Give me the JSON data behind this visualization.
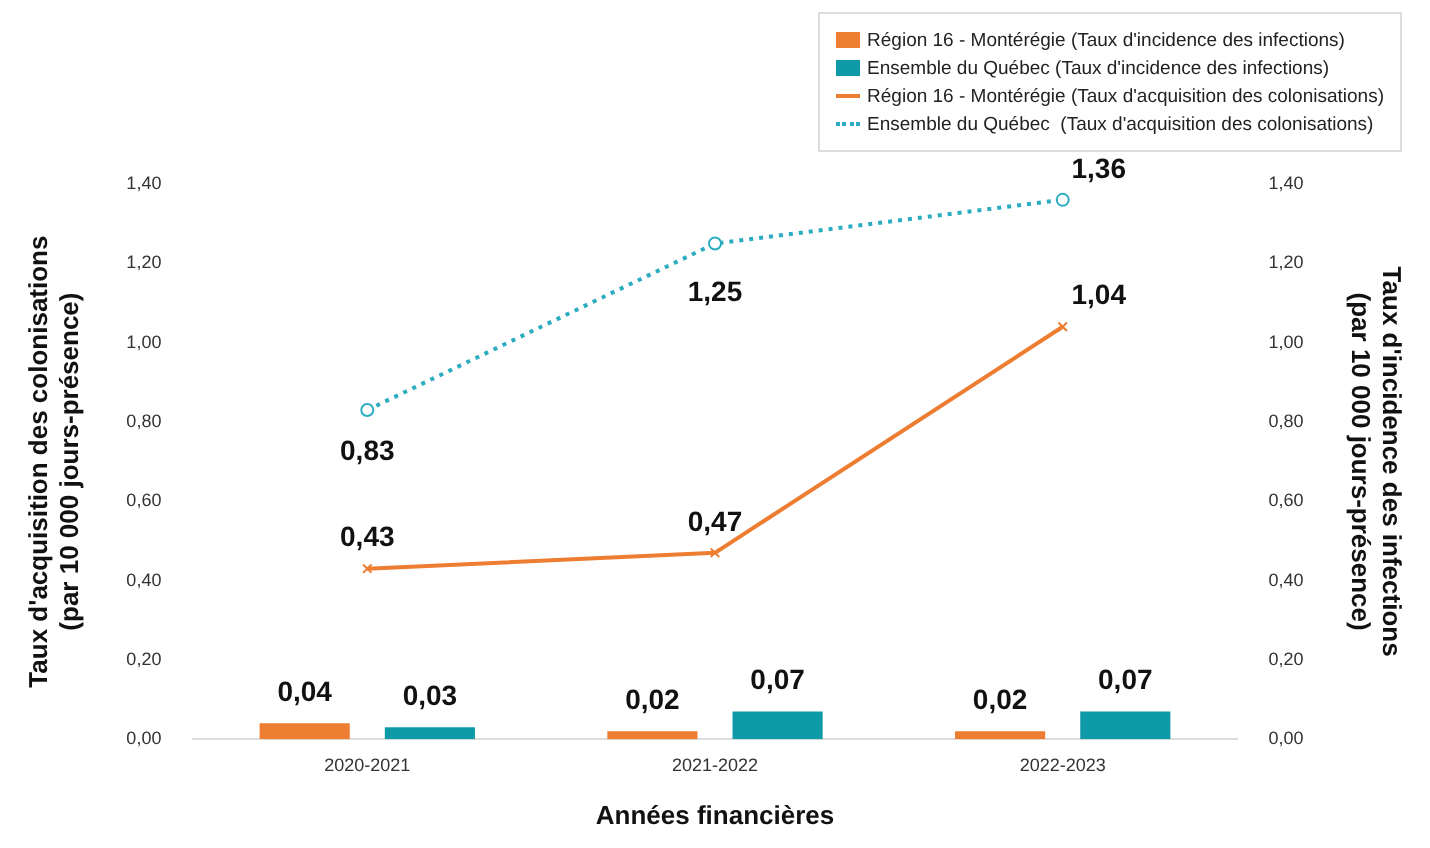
{
  "chart_data": {
    "type": "bar",
    "categories": [
      "2020-2021",
      "2021-2022",
      "2022-2023"
    ],
    "xlabel": "Années financières",
    "ylabel": "Taux d'acquisition des colonisations (par 10 000 jours-présence)",
    "y2label": "Taux d'incidence des infections (par 10 000 jours-présence)",
    "series": [
      {
        "name": "Région 16 - Montérégie (Taux d'incidence des infections)",
        "axis": "y2",
        "color": "#ed7d31",
        "values": [
          0.04,
          0.02,
          0.02
        ],
        "value_labels": [
          "0,04",
          "0,02",
          "0,02"
        ]
      },
      {
        "name": "Ensemble du Québec (Taux d'incidence des infections)",
        "axis": "y2",
        "color": "#0e9aa7",
        "values": [
          0.03,
          0.07,
          0.07
        ],
        "value_labels": [
          "0,03",
          "0,07",
          "0,07"
        ]
      },
      {
        "name": "Région 16 - Montérégie (Taux d'acquisition des colonisations)",
        "type": "line",
        "color": "#ed7d31",
        "marker": "cross",
        "line_style": "solid",
        "values": [
          0.43,
          0.47,
          1.04
        ],
        "value_labels": [
          "0,43",
          "0,47",
          "1,04"
        ]
      },
      {
        "name": "Ensemble du Québec  (Taux d'acquisition des colonisations)",
        "type": "line",
        "color": "#2bacc0",
        "marker": "circle",
        "line_style": "dotted",
        "values": [
          0.83,
          1.25,
          1.36
        ],
        "value_labels": [
          "0,83",
          "1,25",
          "1,36"
        ]
      }
    ],
    "ylim": [
      0,
      1.4
    ],
    "yticks": [
      {
        "value": 0,
        "label": "0,00"
      },
      {
        "value": 0.2,
        "label": "0,20"
      },
      {
        "value": 0.4,
        "label": "0,40"
      },
      {
        "value": 0.6,
        "label": "0,60"
      },
      {
        "value": 0.8,
        "label": "0,80"
      },
      {
        "value": 1,
        "label": "1,00"
      },
      {
        "value": 1.2,
        "label": "1,20"
      },
      {
        "value": 1.4,
        "label": "1,40"
      }
    ],
    "y2lim": [
      0,
      1.4
    ],
    "y2ticks": [
      {
        "value": 0,
        "label": "0,00"
      },
      {
        "value": 0.2,
        "label": "0,20"
      },
      {
        "value": 0.4,
        "label": "0,40"
      },
      {
        "value": 0.6,
        "label": "0,60"
      },
      {
        "value": 0.8,
        "label": "0,80"
      },
      {
        "value": 1,
        "label": "1,00"
      },
      {
        "value": 1.2,
        "label": "1,20"
      },
      {
        "value": 1.4,
        "label": "1,40"
      }
    ],
    "grid": false,
    "legend": "top right"
  }
}
